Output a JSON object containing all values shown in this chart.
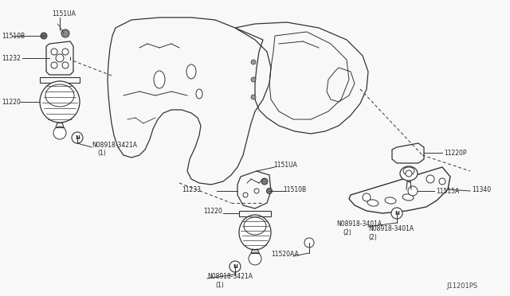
{
  "bg_color": "#f8f8f8",
  "line_color": "#333333",
  "label_color": "#222222",
  "diagram_id": "J11201PS",
  "figsize": [
    6.4,
    3.72
  ],
  "dpi": 100,
  "xlim": [
    0,
    640
  ],
  "ylim": [
    0,
    372
  ]
}
